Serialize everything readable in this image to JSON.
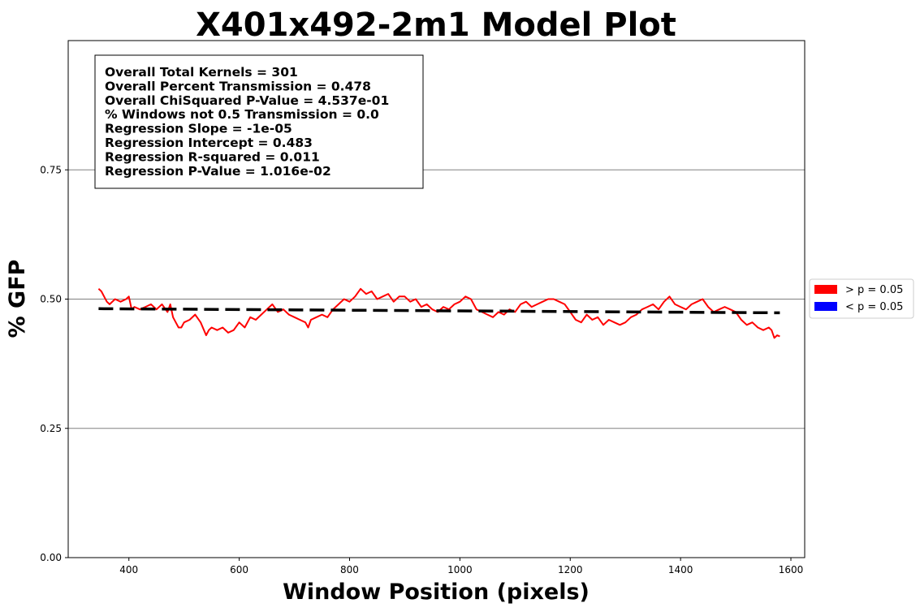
{
  "chart_data": {
    "type": "line",
    "title": "X401x492-2m1 Model Plot",
    "xlabel": "Window Position (pixels)",
    "ylabel": "% GFP",
    "xlim": [
      290,
      1625
    ],
    "ylim": [
      0,
      1.0
    ],
    "xticks": [
      400,
      600,
      800,
      1000,
      1200,
      1400,
      1600
    ],
    "xtick_labels": [
      "400",
      "600",
      "800",
      "1000",
      "1200",
      "1400",
      "1600"
    ],
    "yticks": [
      0,
      0.25,
      0.5,
      0.75
    ],
    "ytick_labels": [
      "0.00",
      "0.25",
      "0.50",
      "0.75"
    ],
    "grid": "horizontal",
    "legend_placement": "outside-right",
    "legend": [
      {
        "label": "> p = 0.05",
        "color": "#ff0000"
      },
      {
        "label": "< p = 0.05",
        "color": "#0000ff"
      }
    ],
    "stats_box": [
      "Overall Total Kernels = 301",
      "Overall Percent Transmission = 0.478",
      "Overall ChiSquared P-Value = 4.537e-01",
      "% Windows not 0.5 Transmission = 0.0",
      "Regression Slope = -1e-05",
      "Regression Intercept = 0.483",
      "Regression R-squared = 0.011",
      "Regression P-Value = 1.016e-02"
    ],
    "series": [
      {
        "color": "#ff0000",
        "style": "solid",
        "x": [
          345,
          350,
          355,
          360,
          365,
          375,
          385,
          395,
          400,
          405,
          410,
          420,
          430,
          440,
          450,
          460,
          470,
          475,
          480,
          485,
          490,
          495,
          500,
          510,
          520,
          530,
          540,
          545,
          550,
          560,
          570,
          580,
          590,
          600,
          610,
          620,
          630,
          640,
          650,
          660,
          670,
          680,
          690,
          700,
          710,
          720,
          725,
          730,
          740,
          750,
          760,
          770,
          780,
          790,
          800,
          810,
          820,
          830,
          840,
          850,
          860,
          870,
          880,
          890,
          900,
          910,
          920,
          930,
          940,
          950,
          960,
          970,
          980,
          990,
          1000,
          1010,
          1020,
          1030,
          1040,
          1050,
          1060,
          1070,
          1080,
          1090,
          1100,
          1110,
          1120,
          1130,
          1140,
          1150,
          1160,
          1170,
          1180,
          1190,
          1200,
          1210,
          1220,
          1230,
          1240,
          1250,
          1260,
          1270,
          1280,
          1290,
          1300,
          1310,
          1320,
          1330,
          1340,
          1350,
          1360,
          1370,
          1380,
          1390,
          1400,
          1410,
          1420,
          1430,
          1440,
          1450,
          1460,
          1470,
          1480,
          1490,
          1500,
          1510,
          1520,
          1530,
          1540,
          1550,
          1560,
          1565,
          1570,
          1575,
          1580
        ],
        "y": [
          0.52,
          0.515,
          0.505,
          0.495,
          0.49,
          0.5,
          0.495,
          0.5,
          0.505,
          0.48,
          0.485,
          0.48,
          0.485,
          0.49,
          0.48,
          0.49,
          0.475,
          0.49,
          0.465,
          0.455,
          0.445,
          0.445,
          0.455,
          0.46,
          0.47,
          0.455,
          0.43,
          0.44,
          0.445,
          0.44,
          0.445,
          0.435,
          0.44,
          0.455,
          0.445,
          0.465,
          0.46,
          0.47,
          0.48,
          0.49,
          0.475,
          0.48,
          0.47,
          0.465,
          0.46,
          0.455,
          0.445,
          0.46,
          0.465,
          0.47,
          0.465,
          0.48,
          0.49,
          0.5,
          0.495,
          0.505,
          0.52,
          0.51,
          0.515,
          0.5,
          0.505,
          0.51,
          0.495,
          0.505,
          0.505,
          0.495,
          0.5,
          0.485,
          0.49,
          0.48,
          0.475,
          0.485,
          0.48,
          0.49,
          0.495,
          0.505,
          0.5,
          0.48,
          0.475,
          0.47,
          0.465,
          0.475,
          0.47,
          0.48,
          0.475,
          0.49,
          0.495,
          0.485,
          0.49,
          0.495,
          0.5,
          0.5,
          0.495,
          0.49,
          0.475,
          0.46,
          0.455,
          0.47,
          0.46,
          0.465,
          0.45,
          0.46,
          0.455,
          0.45,
          0.455,
          0.465,
          0.47,
          0.48,
          0.485,
          0.49,
          0.48,
          0.495,
          0.505,
          0.49,
          0.485,
          0.48,
          0.49,
          0.495,
          0.5,
          0.485,
          0.475,
          0.48,
          0.485,
          0.48,
          0.475,
          0.46,
          0.45,
          0.455,
          0.445,
          0.44,
          0.445,
          0.44,
          0.425,
          0.43,
          0.428
        ]
      },
      {
        "color": "#000000",
        "style": "dashed",
        "x": [
          345,
          1580
        ],
        "y": [
          0.4815,
          0.4735
        ]
      }
    ]
  }
}
